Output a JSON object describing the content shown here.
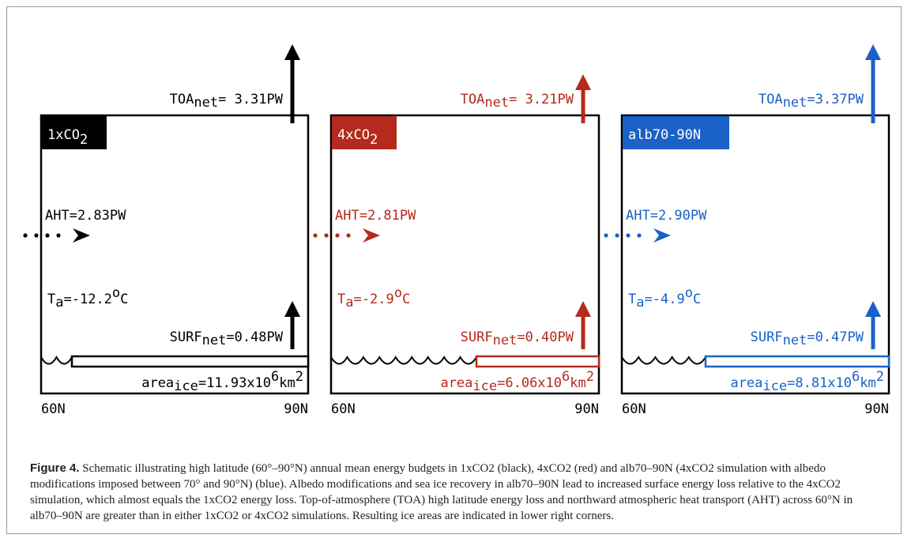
{
  "colors": {
    "black": "#000000",
    "red": "#b52a1c",
    "blue": "#1a61c8"
  },
  "panels": [
    {
      "id": "1xco2",
      "tag": {
        "base": "1xCO",
        "sub": "2"
      },
      "toa": {
        "base": "TOA",
        "sub": "net",
        "value": "= 3.31PW"
      },
      "aht": "AHT=2.83PW",
      "ta": {
        "base": "T",
        "sub": "a",
        "value": "=-12.2",
        "deg": "o",
        "unit": "C"
      },
      "surf": {
        "base": "SURF",
        "sub": "net",
        "value": "=0.48PW"
      },
      "area": {
        "base": "area",
        "sub": "ice",
        "value": "=11.93x10",
        "sup": "6",
        "unit": "km",
        "sup2": "2"
      },
      "left_label": "60N",
      "right_label": "90N"
    },
    {
      "id": "4xco2",
      "tag": {
        "base": "4xCO",
        "sub": "2"
      },
      "toa": {
        "base": "TOA",
        "sub": "net",
        "value": "= 3.21PW"
      },
      "aht": "AHT=2.81PW",
      "ta": {
        "base": "T",
        "sub": "a",
        "value": "=-2.9",
        "deg": "o",
        "unit": "C"
      },
      "surf": {
        "base": "SURF",
        "sub": "net",
        "value": "=0.40PW"
      },
      "area": {
        "base": "area",
        "sub": "ice",
        "value": "=6.06x10",
        "sup": "6",
        "unit": "km",
        "sup2": "2"
      },
      "left_label": "60N",
      "right_label": "90N"
    },
    {
      "id": "alb70-90n",
      "tag": {
        "base": "alb70-90N",
        "sub": ""
      },
      "toa": {
        "base": "TOA",
        "sub": "net",
        "value": "=3.37PW"
      },
      "aht": "AHT=2.90PW",
      "ta": {
        "base": "T",
        "sub": "a",
        "value": "=-4.9",
        "deg": "o",
        "unit": "C"
      },
      "surf": {
        "base": "SURF",
        "sub": "net",
        "value": "=0.47PW"
      },
      "area": {
        "base": "area",
        "sub": "ice",
        "value": "=8.81x10",
        "sup": "6",
        "unit": "km",
        "sup2": "2"
      },
      "left_label": "60N",
      "right_label": "90N"
    }
  ],
  "caption": {
    "label": "Figure 4.",
    "text": "Schematic illustrating high latitude (60°–90°N) annual mean energy budgets in 1xCO2 (black), 4xCO2 (red) and alb70–90N (4xCO2 simulation with albedo modifications imposed between 70° and 90°N) (blue). Albedo modifications and sea ice recovery in alb70–90N lead to increased surface energy loss relative to the 4xCO2 simulation, which almost equals the 1xCO2 energy loss. Top-of-atmosphere (TOA) high latitude energy loss and northward atmospheric heat transport (AHT) across 60°N in alb70–90N are greater than in either 1xCO2 or 4xCO2 simulations. Resulting ice areas are indicated in lower right corners."
  }
}
